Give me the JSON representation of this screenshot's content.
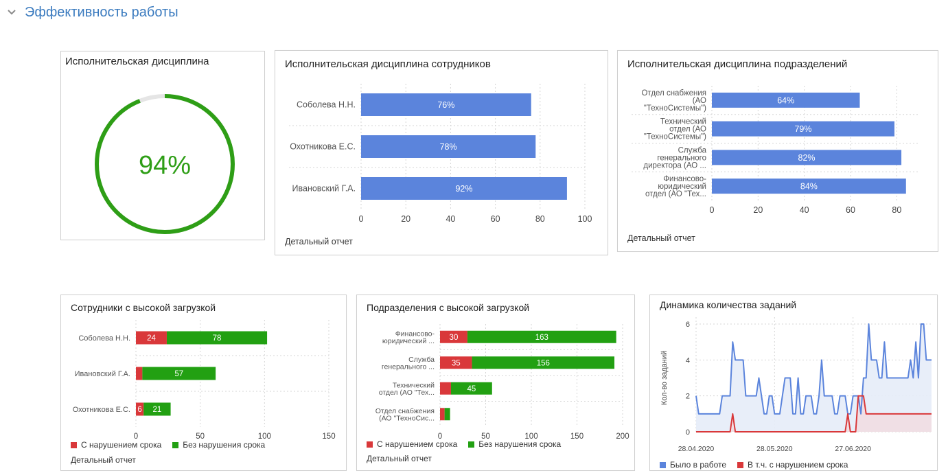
{
  "section": {
    "title": "Эффективность работы",
    "icon": "chevron-down-icon"
  },
  "colors": {
    "bar_blue": "#5b84dc",
    "red": "#d9383a",
    "green": "#22a012",
    "gauge_green": "#2e9e16",
    "track": "#e5e5e5",
    "line_blue": "#5b84dc",
    "area_blue": "#e6ecf8",
    "area_red": "#f1dde2"
  },
  "discipline": {
    "title": "Исполнительская дисциплина",
    "value": 94,
    "value_label": "94%"
  },
  "employees_discipline": {
    "title": "Исполнительская дисциплина сотрудников",
    "link": "Детальный отчет",
    "chart_data": {
      "type": "bar",
      "orientation": "horizontal",
      "categories": [
        "Соболева Н.Н.",
        "Охотникова Е.С.",
        "Ивановский Г.А."
      ],
      "values": [
        76,
        78,
        92
      ],
      "labels": [
        "76%",
        "78%",
        "92%"
      ],
      "xlim": [
        0,
        100
      ],
      "xticks": [
        0,
        20,
        40,
        60,
        80,
        100
      ],
      "grid": true
    }
  },
  "departments_discipline": {
    "title": "Исполнительская дисциплина подразделений",
    "link": "Детальный отчет",
    "chart_data": {
      "type": "bar",
      "orientation": "horizontal",
      "categories": [
        [
          "Отдел снабжения",
          "(АО",
          "\"ТехноСистемы\")"
        ],
        [
          "Технический",
          "отдел (АО",
          "\"ТехноСистемы\")"
        ],
        [
          "Служба",
          "генерального",
          "директора (АО ..."
        ],
        [
          "Финансово-",
          "юридический",
          "отдел (АО \"Тех..."
        ]
      ],
      "values": [
        64,
        79,
        82,
        84
      ],
      "labels": [
        "64%",
        "79%",
        "82%",
        "84%"
      ],
      "xlim": [
        0,
        90
      ],
      "xticks": [
        0,
        20,
        40,
        60,
        80
      ],
      "grid": true
    }
  },
  "employees_load": {
    "title": "Сотрудники с высокой загрузкой",
    "link": "Детальный отчет",
    "chart_data": {
      "type": "bar",
      "orientation": "horizontal",
      "stacked": true,
      "categories": [
        "Соболева Н.Н.",
        "Ивановский Г.А.",
        "Охотникова Е.С."
      ],
      "series": [
        {
          "name": "С нарушением срока",
          "values": [
            24,
            5,
            6
          ],
          "labels": [
            "24",
            "",
            "6"
          ]
        },
        {
          "name": "Без нарушения срока",
          "values": [
            78,
            57,
            21
          ],
          "labels": [
            "78",
            "57",
            "21"
          ]
        }
      ],
      "xlim": [
        0,
        150
      ],
      "xticks": [
        0,
        50,
        100,
        150
      ],
      "legend": "bottom-left"
    }
  },
  "departments_load": {
    "title": "Подразделения с высокой загрузкой",
    "link": "Детальный отчет",
    "chart_data": {
      "type": "bar",
      "orientation": "horizontal",
      "stacked": true,
      "categories": [
        [
          "Финансово-",
          "юридический ..."
        ],
        [
          "Служба",
          "генерального ..."
        ],
        [
          "Технический",
          "отдел (АО \"Тех..."
        ],
        [
          "Отдел снабжения",
          "(АО \"ТехноСис..."
        ]
      ],
      "series": [
        {
          "name": "С нарушением срока",
          "values": [
            30,
            35,
            12,
            5
          ],
          "labels": [
            "30",
            "35",
            "",
            ""
          ]
        },
        {
          "name": "Без нарушения срока",
          "values": [
            163,
            156,
            45,
            6
          ],
          "labels": [
            "163",
            "156",
            "45",
            ""
          ]
        }
      ],
      "xlim": [
        0,
        200
      ],
      "xticks": [
        0,
        50,
        100,
        150,
        200
      ],
      "legend": "bottom-left"
    }
  },
  "dynamics": {
    "title": "Динамика количества заданий",
    "chart_data": {
      "type": "area",
      "ylabel": "Кол-во заданий",
      "ylim": [
        0,
        6
      ],
      "yticks": [
        0,
        2,
        4,
        6
      ],
      "x_tick_labels": [
        {
          "index": 0,
          "label": "28.04.2020"
        },
        {
          "index": 30,
          "label": "28.05.2020"
        },
        {
          "index": 60,
          "label": "27.06.2020"
        }
      ],
      "legend": "bottom-left",
      "series": [
        {
          "name": "Было в работе",
          "values": [
            2,
            1,
            1,
            1,
            1,
            1,
            1,
            1,
            1,
            1,
            2,
            2,
            2,
            2,
            5,
            4,
            4,
            4,
            4,
            2,
            2,
            2,
            2,
            2,
            3,
            2,
            1,
            1,
            2,
            2,
            1,
            1,
            1,
            2,
            3,
            3,
            3,
            1,
            1,
            3,
            1,
            1,
            2,
            2,
            2,
            1,
            1,
            2,
            4,
            2,
            2,
            2,
            2,
            1,
            1,
            2,
            2,
            2,
            1,
            1,
            2,
            2,
            2,
            1,
            3,
            3,
            6,
            4,
            4,
            4,
            3,
            3,
            5,
            3,
            3,
            3,
            3,
            3,
            3,
            3,
            3,
            3,
            4,
            3,
            5,
            3,
            6,
            6,
            4,
            4,
            4
          ]
        },
        {
          "name": "В т.ч. с нарушением срока",
          "values": [
            0,
            0,
            0,
            0,
            0,
            0,
            0,
            0,
            0,
            0,
            0,
            0,
            0,
            0,
            1,
            0,
            0,
            0,
            0,
            0,
            0,
            0,
            0,
            0,
            0,
            0,
            0,
            0,
            0,
            0,
            0,
            0,
            0,
            0,
            0,
            0,
            0,
            0,
            0,
            0,
            0,
            0,
            0,
            0,
            0,
            0,
            0,
            0,
            0,
            0,
            0,
            0,
            0,
            0,
            0,
            0,
            0,
            0,
            1,
            0,
            0,
            0,
            2,
            2,
            2,
            1,
            1,
            1,
            1,
            1,
            1,
            1,
            1,
            1,
            1,
            1,
            1,
            1,
            1,
            1,
            1,
            1,
            1,
            1,
            1,
            1,
            1,
            1,
            1,
            1,
            1
          ]
        }
      ]
    }
  }
}
